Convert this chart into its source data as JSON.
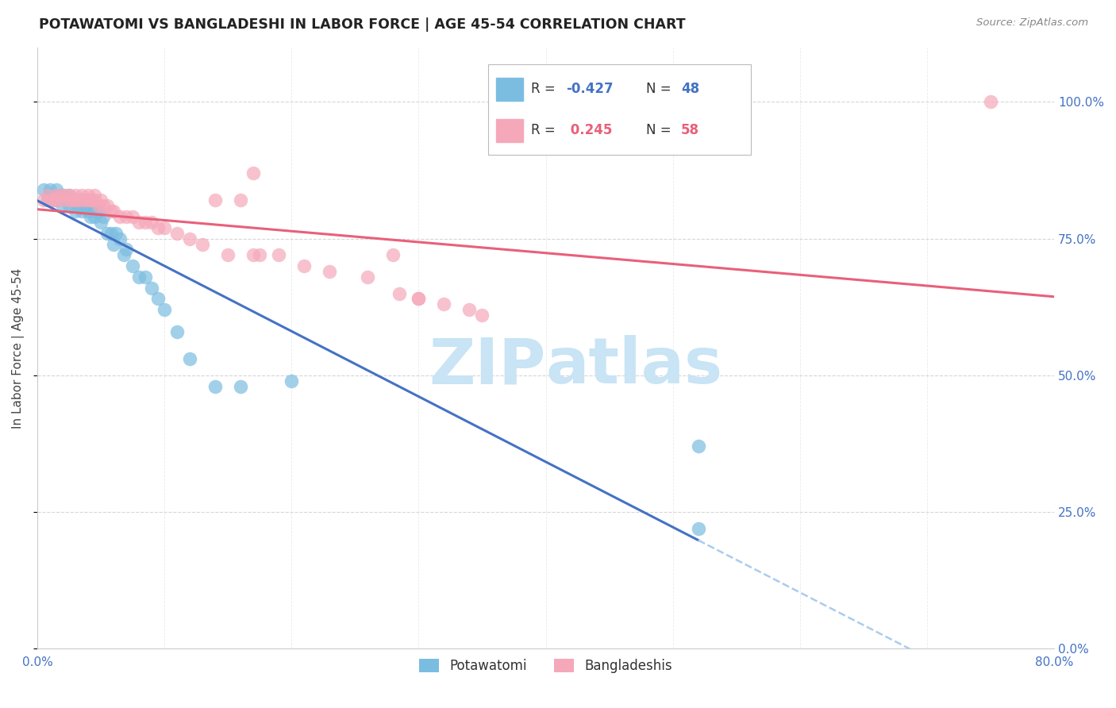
{
  "title": "POTAWATOMI VS BANGLADESHI IN LABOR FORCE | AGE 45-54 CORRELATION CHART",
  "source": "Source: ZipAtlas.com",
  "ylabel": "In Labor Force | Age 45-54",
  "xmin": 0.0,
  "xmax": 0.8,
  "ymin": 0.0,
  "ymax": 1.1,
  "xtick_labels": [
    "0.0%",
    "",
    "",
    "",
    "",
    "",
    "",
    "",
    "80.0%"
  ],
  "xtick_values": [
    0.0,
    0.1,
    0.2,
    0.3,
    0.4,
    0.5,
    0.6,
    0.7,
    0.8
  ],
  "ytick_labels_right": [
    "0.0%",
    "25.0%",
    "50.0%",
    "75.0%",
    "100.0%"
  ],
  "ytick_values": [
    0.0,
    0.25,
    0.5,
    0.75,
    1.0
  ],
  "legend_r_blue": "-0.427",
  "legend_n_blue": "48",
  "legend_r_pink": "0.245",
  "legend_n_pink": "58",
  "blue_color": "#7BBDE0",
  "pink_color": "#F5A8BA",
  "blue_line_color": "#4472C4",
  "pink_line_color": "#E8607A",
  "dashed_line_color": "#AACCEE",
  "watermark_color": "#C8E4F5",
  "blue_scatter_x": [
    0.005,
    0.008,
    0.01,
    0.01,
    0.012,
    0.015,
    0.015,
    0.018,
    0.02,
    0.02,
    0.022,
    0.025,
    0.025,
    0.028,
    0.03,
    0.03,
    0.032,
    0.035,
    0.035,
    0.038,
    0.04,
    0.04,
    0.042,
    0.045,
    0.045,
    0.048,
    0.05,
    0.052,
    0.055,
    0.058,
    0.06,
    0.062,
    0.065,
    0.068,
    0.07,
    0.075,
    0.08,
    0.085,
    0.09,
    0.095,
    0.1,
    0.11,
    0.12,
    0.14,
    0.16,
    0.2,
    0.52,
    0.52
  ],
  "blue_scatter_y": [
    0.84,
    0.82,
    0.83,
    0.84,
    0.82,
    0.82,
    0.84,
    0.83,
    0.81,
    0.83,
    0.82,
    0.81,
    0.83,
    0.82,
    0.8,
    0.82,
    0.81,
    0.8,
    0.82,
    0.81,
    0.8,
    0.81,
    0.79,
    0.8,
    0.79,
    0.8,
    0.78,
    0.79,
    0.76,
    0.76,
    0.74,
    0.76,
    0.75,
    0.72,
    0.73,
    0.7,
    0.68,
    0.68,
    0.66,
    0.64,
    0.62,
    0.58,
    0.53,
    0.48,
    0.48,
    0.49,
    0.37,
    0.22
  ],
  "pink_scatter_x": [
    0.005,
    0.008,
    0.01,
    0.012,
    0.015,
    0.015,
    0.018,
    0.02,
    0.022,
    0.025,
    0.025,
    0.028,
    0.03,
    0.03,
    0.032,
    0.035,
    0.035,
    0.038,
    0.04,
    0.04,
    0.042,
    0.045,
    0.045,
    0.048,
    0.05,
    0.052,
    0.055,
    0.058,
    0.06,
    0.065,
    0.07,
    0.075,
    0.08,
    0.085,
    0.09,
    0.095,
    0.1,
    0.11,
    0.12,
    0.13,
    0.14,
    0.15,
    0.16,
    0.175,
    0.19,
    0.21,
    0.23,
    0.26,
    0.285,
    0.3,
    0.32,
    0.34,
    0.35,
    0.28,
    0.3,
    0.17,
    0.75,
    0.17
  ],
  "pink_scatter_y": [
    0.82,
    0.83,
    0.82,
    0.82,
    0.83,
    0.82,
    0.83,
    0.82,
    0.83,
    0.82,
    0.83,
    0.82,
    0.82,
    0.83,
    0.82,
    0.82,
    0.83,
    0.82,
    0.82,
    0.83,
    0.82,
    0.82,
    0.83,
    0.81,
    0.82,
    0.81,
    0.81,
    0.8,
    0.8,
    0.79,
    0.79,
    0.79,
    0.78,
    0.78,
    0.78,
    0.77,
    0.77,
    0.76,
    0.75,
    0.74,
    0.82,
    0.72,
    0.82,
    0.72,
    0.72,
    0.7,
    0.69,
    0.68,
    0.65,
    0.64,
    0.63,
    0.62,
    0.61,
    0.72,
    0.64,
    0.72,
    1.0,
    0.87
  ],
  "blue_line_solid_end": 0.52,
  "blue_line_x_start": 0.0,
  "pink_line_x_start": 0.0,
  "pink_line_x_end": 0.8
}
